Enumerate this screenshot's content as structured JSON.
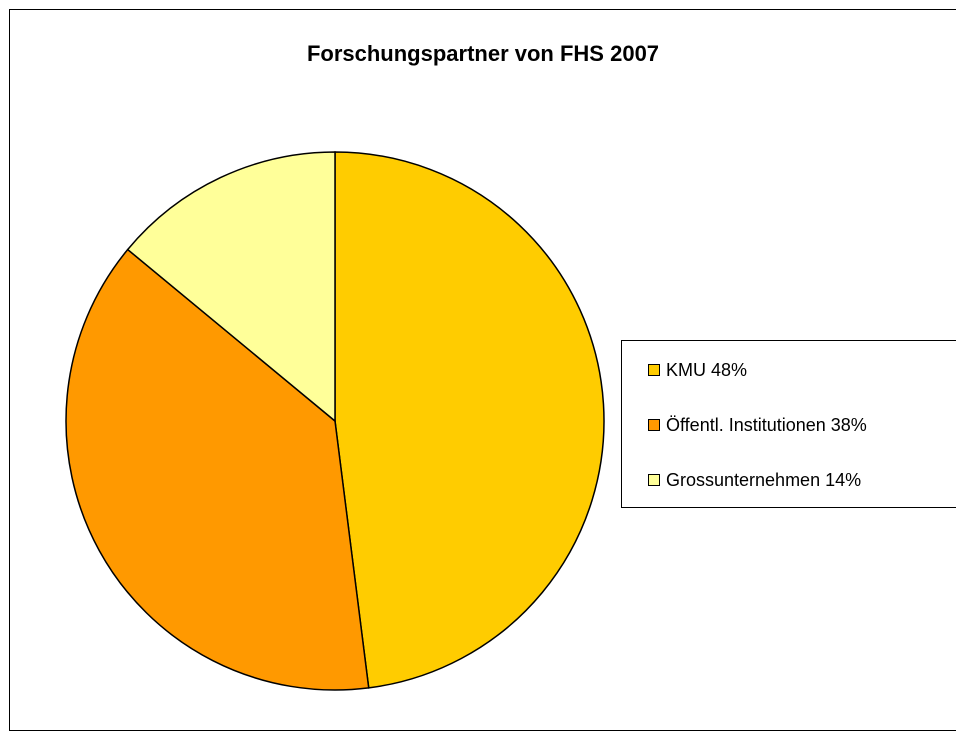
{
  "chart_data": {
    "type": "pie",
    "title": "Forschungspartner von FHS 2007",
    "categories": [
      "KMU 48%",
      "Öffentl. Institutionen 38%",
      "Grossunternehmen 14%"
    ],
    "values": [
      48,
      38,
      14
    ],
    "colors": [
      "#ffcc00",
      "#ff9900",
      "#ffff99"
    ],
    "legend": "right"
  }
}
